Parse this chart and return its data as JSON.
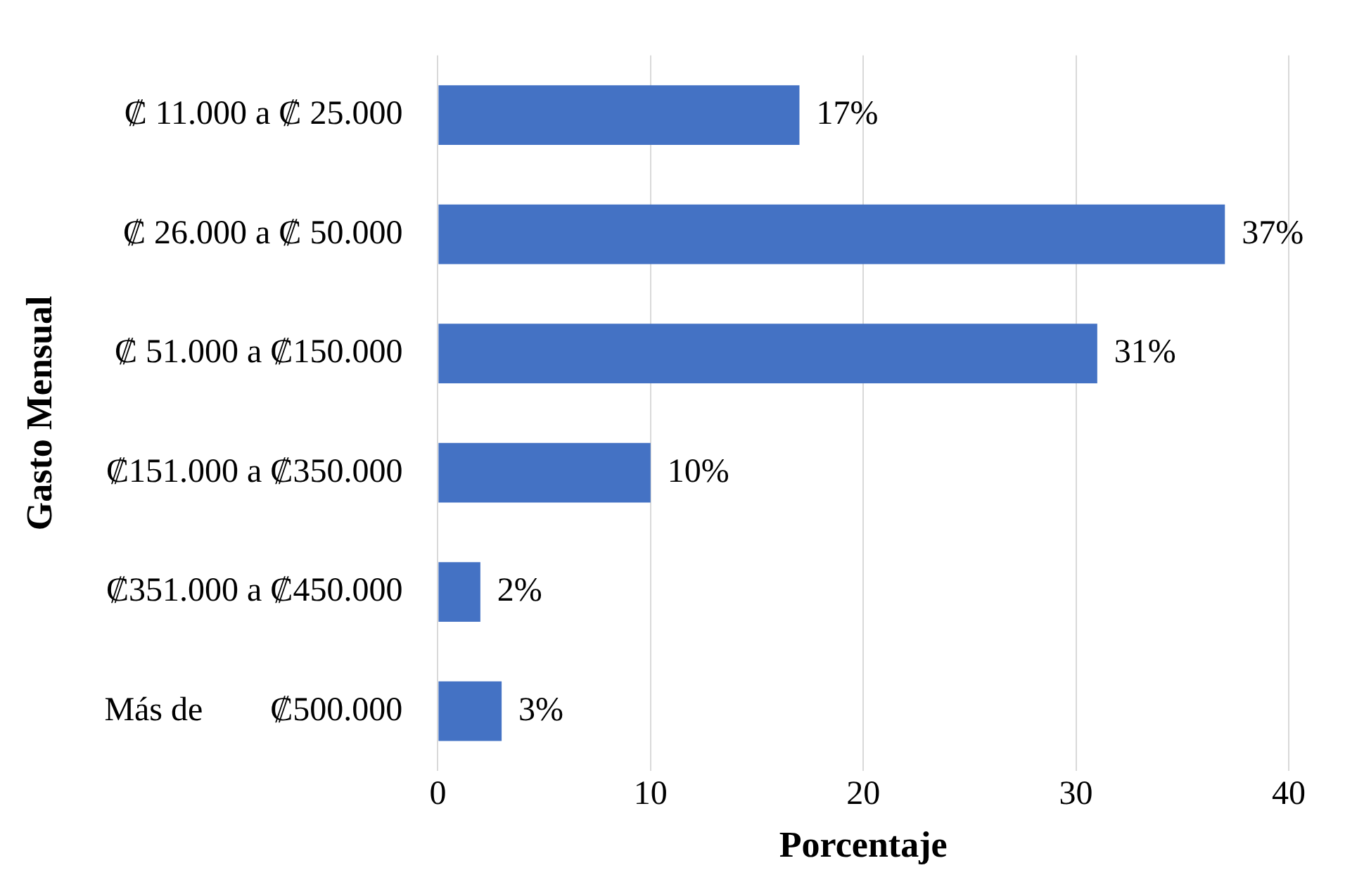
{
  "chart_data": {
    "type": "bar",
    "orientation": "horizontal",
    "xlabel": "Porcentaje",
    "ylabel": "Gasto Mensual",
    "categories": [
      "₡ 11.000 a ₡ 25.000",
      "₡ 26.000 a ₡ 50.000",
      "₡ 51.000 a ₡150.000",
      "₡151.000 a ₡350.000",
      "₡351.000 a ₡450.000",
      "Más de        ₡500.000"
    ],
    "values": [
      17,
      37,
      31,
      10,
      2,
      3
    ],
    "value_labels": [
      "17%",
      "37%",
      "31%",
      "10%",
      "2%",
      "3%"
    ],
    "color": "#4472c4",
    "xlim": [
      0,
      40
    ],
    "xticks": [
      0,
      10,
      20,
      30,
      40
    ],
    "grid": "x",
    "legend": false
  }
}
